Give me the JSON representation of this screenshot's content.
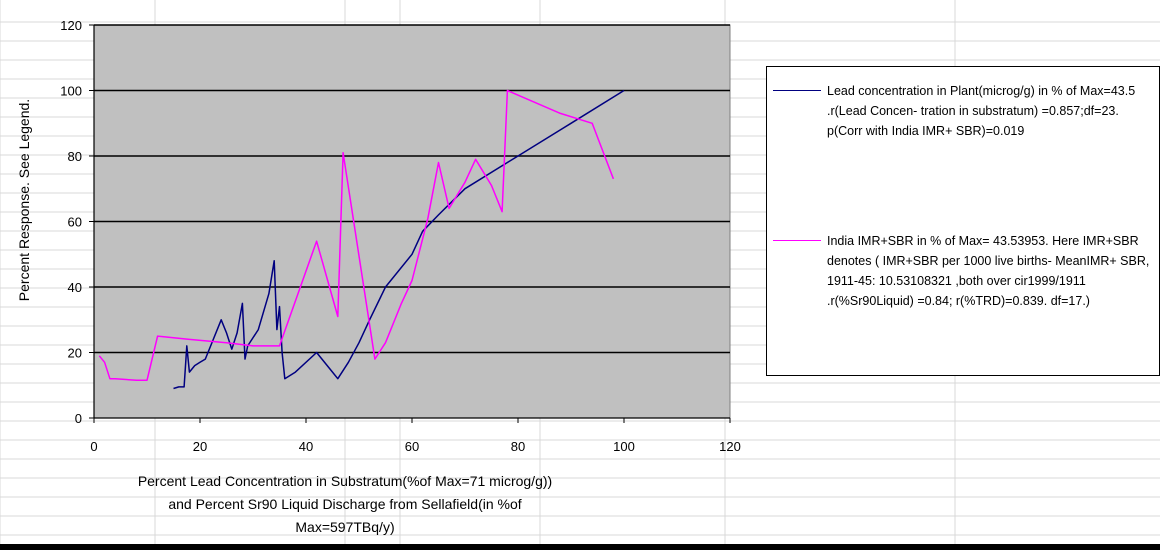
{
  "chart_data": {
    "type": "line",
    "ylabel": "Percent Response. See Legend.",
    "xlabel": "Percent Lead Concentration in Substratum(%of Max=71 microg/g)) and Percent Sr90 Liquid Discharge from Sellafield(in %of Max=597TBq/y)",
    "xlim": [
      0,
      120
    ],
    "ylim": [
      0,
      120
    ],
    "xticks": [
      0,
      20,
      40,
      60,
      80,
      100,
      120
    ],
    "yticks": [
      0,
      20,
      40,
      60,
      80,
      100,
      120
    ],
    "grid": "horizontal",
    "plot_background": "#c0c0c0",
    "legend_position": "right",
    "series": [
      {
        "name": "Lead concentration in Plant(microg/g) in % of Max=43.5 .r(Lead Concen- tration in substratum) =0.857;df=23. p(Corr with India IMR+ SBR)=0.019",
        "color": "#000080",
        "points": [
          [
            15,
            9
          ],
          [
            16,
            9.5
          ],
          [
            17,
            9.5
          ],
          [
            17.5,
            22
          ],
          [
            18,
            14
          ],
          [
            19,
            16
          ],
          [
            20,
            17
          ],
          [
            21,
            18
          ],
          [
            24,
            30
          ],
          [
            25,
            26
          ],
          [
            26,
            21
          ],
          [
            27,
            26
          ],
          [
            28,
            35
          ],
          [
            28.5,
            18
          ],
          [
            29,
            22
          ],
          [
            31,
            27
          ],
          [
            33,
            38
          ],
          [
            34,
            48
          ],
          [
            34.5,
            27
          ],
          [
            35,
            34
          ],
          [
            35.5,
            20
          ],
          [
            36,
            12
          ],
          [
            38,
            14
          ],
          [
            42,
            20
          ],
          [
            45,
            14
          ],
          [
            46,
            12
          ],
          [
            48,
            17
          ],
          [
            50,
            23
          ],
          [
            52,
            30
          ],
          [
            55,
            40
          ],
          [
            60,
            50
          ],
          [
            62,
            57
          ],
          [
            65,
            62
          ],
          [
            70,
            70
          ],
          [
            80,
            80
          ],
          [
            90,
            90
          ],
          [
            100,
            100
          ]
        ]
      },
      {
        "name": "India IMR+SBR in % of Max= 43.53953. Here IMR+SBR denotes ( IMR+SBR per 1000 live births- MeanIMR+ SBR, 1911-45: 10.53108321 ,both over cir1999/1911 .r(%Sr90Liquid) =0.84; r(%TRD)=0.839. df=17.)",
        "color": "#ff00ff",
        "points": [
          [
            1,
            19
          ],
          [
            2,
            17
          ],
          [
            3,
            12
          ],
          [
            4,
            12
          ],
          [
            8,
            11.5
          ],
          [
            10,
            11.5
          ],
          [
            12,
            25
          ],
          [
            18,
            24
          ],
          [
            25,
            23
          ],
          [
            30,
            22
          ],
          [
            35,
            22
          ],
          [
            42,
            54
          ],
          [
            46,
            31
          ],
          [
            47,
            81
          ],
          [
            49,
            60
          ],
          [
            53,
            18
          ],
          [
            55,
            23
          ],
          [
            58,
            35
          ],
          [
            60,
            42
          ],
          [
            63,
            61
          ],
          [
            65,
            78
          ],
          [
            67,
            64
          ],
          [
            70,
            72
          ],
          [
            72,
            79
          ],
          [
            75,
            71
          ],
          [
            77,
            63
          ],
          [
            78,
            100
          ],
          [
            88,
            93
          ],
          [
            94,
            90
          ],
          [
            98,
            73
          ]
        ]
      }
    ]
  }
}
